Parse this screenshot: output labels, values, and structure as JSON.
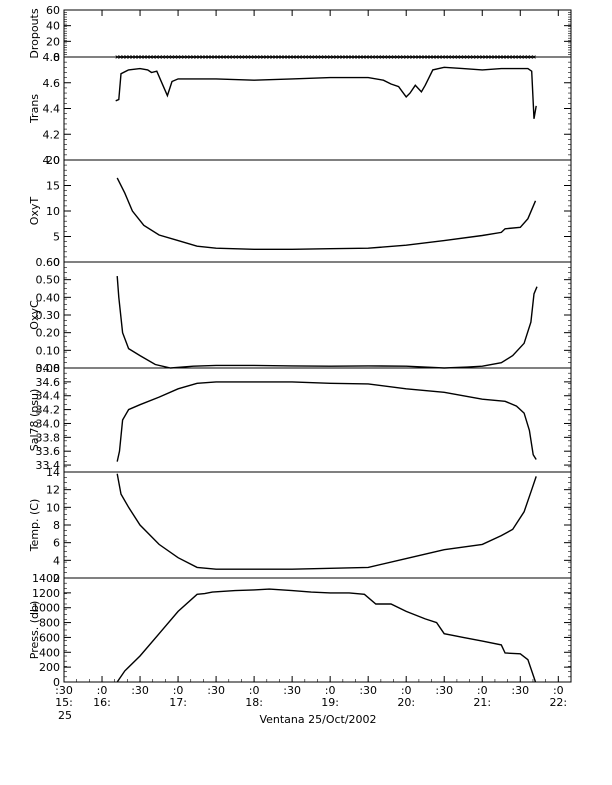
{
  "chart_data": {
    "type": "line",
    "caption": "Ventana 25/Oct/2002",
    "time_axis": {
      "start_hours": 15.5,
      "end_hours": 22.167,
      "ticks": [
        {
          "t": 15.5,
          "top": ":30",
          "bottom": "15:",
          "extra": "25"
        },
        {
          "t": 16.0,
          "top": ":0",
          "bottom": "16:",
          "extra": ""
        },
        {
          "t": 16.5,
          "top": ":30",
          "bottom": "",
          "extra": ""
        },
        {
          "t": 17.0,
          "top": ":0",
          "bottom": "17:",
          "extra": ""
        },
        {
          "t": 17.5,
          "top": ":30",
          "bottom": "",
          "extra": ""
        },
        {
          "t": 18.0,
          "top": ":0",
          "bottom": "18:",
          "extra": ""
        },
        {
          "t": 18.5,
          "top": ":30",
          "bottom": "",
          "extra": ""
        },
        {
          "t": 19.0,
          "top": ":0",
          "bottom": "19:",
          "extra": ""
        },
        {
          "t": 19.5,
          "top": ":30",
          "bottom": "",
          "extra": ""
        },
        {
          "t": 20.0,
          "top": ":0",
          "bottom": "20:",
          "extra": ""
        },
        {
          "t": 20.5,
          "top": ":30",
          "bottom": "",
          "extra": ""
        },
        {
          "t": 21.0,
          "top": ":0",
          "bottom": "21:",
          "extra": ""
        },
        {
          "t": 21.5,
          "top": ":30",
          "bottom": "",
          "extra": ""
        },
        {
          "t": 22.0,
          "top": ":0",
          "bottom": "22:",
          "extra": ""
        }
      ]
    },
    "panels": [
      {
        "id": "dropouts",
        "label": "Dropouts",
        "ylim": [
          0,
          60
        ],
        "tick_labels": [
          "0",
          "20",
          "40",
          "60"
        ],
        "series_color": "#000000",
        "points": [
          [
            16.2,
            0
          ],
          [
            21.7,
            0
          ]
        ]
      },
      {
        "id": "trans",
        "label": "Trans",
        "ylim": [
          4.0,
          4.8
        ],
        "tick_labels": [
          "4.0",
          "4.2",
          "4.4",
          "4.6",
          "4.8"
        ],
        "series_color": "#000000",
        "points": [
          [
            16.18,
            4.46
          ],
          [
            16.22,
            4.47
          ],
          [
            16.25,
            4.67
          ],
          [
            16.35,
            4.7
          ],
          [
            16.5,
            4.71
          ],
          [
            16.6,
            4.7
          ],
          [
            16.65,
            4.68
          ],
          [
            16.72,
            4.69
          ],
          [
            16.8,
            4.58
          ],
          [
            16.86,
            4.5
          ],
          [
            16.92,
            4.61
          ],
          [
            17.0,
            4.63
          ],
          [
            17.5,
            4.63
          ],
          [
            18.0,
            4.62
          ],
          [
            18.5,
            4.63
          ],
          [
            19.0,
            4.64
          ],
          [
            19.5,
            4.64
          ],
          [
            19.7,
            4.62
          ],
          [
            19.8,
            4.59
          ],
          [
            19.9,
            4.57
          ],
          [
            19.95,
            4.53
          ],
          [
            20.0,
            4.49
          ],
          [
            20.05,
            4.52
          ],
          [
            20.12,
            4.58
          ],
          [
            20.2,
            4.53
          ],
          [
            20.25,
            4.58
          ],
          [
            20.35,
            4.7
          ],
          [
            20.5,
            4.72
          ],
          [
            20.75,
            4.71
          ],
          [
            21.0,
            4.7
          ],
          [
            21.25,
            4.71
          ],
          [
            21.5,
            4.71
          ],
          [
            21.6,
            4.71
          ],
          [
            21.65,
            4.69
          ],
          [
            21.68,
            4.32
          ],
          [
            21.71,
            4.42
          ]
        ]
      },
      {
        "id": "oxyt",
        "label": "OxyT",
        "ylim": [
          0,
          20
        ],
        "tick_labels": [
          "0",
          "5",
          "10",
          "15",
          "20"
        ],
        "series_color": "#000000",
        "points": [
          [
            16.2,
            16.5
          ],
          [
            16.3,
            13.5
          ],
          [
            16.4,
            10.0
          ],
          [
            16.55,
            7.2
          ],
          [
            16.75,
            5.3
          ],
          [
            17.0,
            4.2
          ],
          [
            17.25,
            3.1
          ],
          [
            17.5,
            2.7
          ],
          [
            18.0,
            2.5
          ],
          [
            18.5,
            2.5
          ],
          [
            19.0,
            2.6
          ],
          [
            19.5,
            2.7
          ],
          [
            20.0,
            3.3
          ],
          [
            20.5,
            4.2
          ],
          [
            21.0,
            5.2
          ],
          [
            21.25,
            5.8
          ],
          [
            21.3,
            6.5
          ],
          [
            21.5,
            6.8
          ],
          [
            21.6,
            8.5
          ],
          [
            21.7,
            12.0
          ]
        ]
      },
      {
        "id": "oxyc",
        "label": "OxyC",
        "ylim": [
          0,
          0.6
        ],
        "tick_labels": [
          "0.00",
          "0.10",
          "0.20",
          "0.30",
          "0.40",
          "0.50",
          "0.60"
        ],
        "series_color": "#000000",
        "points": [
          [
            16.2,
            0.52
          ],
          [
            16.22,
            0.4
          ],
          [
            16.27,
            0.2
          ],
          [
            16.35,
            0.11
          ],
          [
            16.5,
            0.07
          ],
          [
            16.7,
            0.02
          ],
          [
            16.9,
            0.0
          ],
          [
            17.2,
            0.01
          ],
          [
            17.5,
            0.015
          ],
          [
            18.0,
            0.015
          ],
          [
            18.5,
            0.012
          ],
          [
            19.0,
            0.01
          ],
          [
            19.5,
            0.012
          ],
          [
            20.0,
            0.01
          ],
          [
            20.5,
            0.0
          ],
          [
            20.8,
            0.005
          ],
          [
            21.0,
            0.01
          ],
          [
            21.25,
            0.03
          ],
          [
            21.4,
            0.07
          ],
          [
            21.55,
            0.14
          ],
          [
            21.64,
            0.26
          ],
          [
            21.68,
            0.42
          ],
          [
            21.72,
            0.46
          ]
        ]
      },
      {
        "id": "sal",
        "label": "Sal78 (psu)",
        "ylim": [
          33.3,
          34.8
        ],
        "tick_labels": [
          "33.4",
          "33.6",
          "33.8",
          "34.0",
          "34.2",
          "34.4",
          "34.6",
          "34.8"
        ],
        "series_color": "#000000",
        "points": [
          [
            16.2,
            33.45
          ],
          [
            16.23,
            33.6
          ],
          [
            16.27,
            34.05
          ],
          [
            16.35,
            34.2
          ],
          [
            16.5,
            34.27
          ],
          [
            16.75,
            34.38
          ],
          [
            17.0,
            34.5
          ],
          [
            17.25,
            34.58
          ],
          [
            17.5,
            34.6
          ],
          [
            18.0,
            34.6
          ],
          [
            18.5,
            34.6
          ],
          [
            19.0,
            34.58
          ],
          [
            19.5,
            34.57
          ],
          [
            20.0,
            34.5
          ],
          [
            20.5,
            34.45
          ],
          [
            21.0,
            34.35
          ],
          [
            21.3,
            34.32
          ],
          [
            21.45,
            34.25
          ],
          [
            21.55,
            34.15
          ],
          [
            21.62,
            33.9
          ],
          [
            21.67,
            33.55
          ],
          [
            21.71,
            33.48
          ]
        ]
      },
      {
        "id": "temp",
        "label": "Temp. (C)",
        "ylim": [
          2,
          14
        ],
        "tick_labels": [
          "2",
          "4",
          "6",
          "8",
          "10",
          "12",
          "14"
        ],
        "series_color": "#000000",
        "points": [
          [
            16.2,
            13.8
          ],
          [
            16.25,
            11.5
          ],
          [
            16.35,
            10.0
          ],
          [
            16.5,
            8.0
          ],
          [
            16.75,
            5.8
          ],
          [
            17.0,
            4.3
          ],
          [
            17.25,
            3.2
          ],
          [
            17.5,
            3.0
          ],
          [
            18.0,
            3.0
          ],
          [
            18.5,
            3.0
          ],
          [
            19.0,
            3.1
          ],
          [
            19.5,
            3.2
          ],
          [
            20.0,
            4.2
          ],
          [
            20.5,
            5.2
          ],
          [
            21.0,
            5.8
          ],
          [
            21.25,
            6.8
          ],
          [
            21.4,
            7.5
          ],
          [
            21.55,
            9.5
          ],
          [
            21.65,
            12.0
          ],
          [
            21.71,
            13.5
          ]
        ]
      },
      {
        "id": "press",
        "label": "Press. (db)",
        "ylim": [
          0,
          1400
        ],
        "tick_labels": [
          "0",
          "200",
          "400",
          "600",
          "800",
          "1000",
          "1200",
          "1400"
        ],
        "series_color": "#000000",
        "points": [
          [
            16.2,
            0
          ],
          [
            16.3,
            150
          ],
          [
            16.5,
            350
          ],
          [
            16.75,
            650
          ],
          [
            17.0,
            950
          ],
          [
            17.25,
            1180
          ],
          [
            17.35,
            1190
          ],
          [
            17.45,
            1210
          ],
          [
            17.75,
            1230
          ],
          [
            18.0,
            1240
          ],
          [
            18.2,
            1250
          ],
          [
            18.5,
            1230
          ],
          [
            18.75,
            1210
          ],
          [
            19.0,
            1200
          ],
          [
            19.25,
            1200
          ],
          [
            19.45,
            1180
          ],
          [
            19.6,
            1050
          ],
          [
            19.8,
            1050
          ],
          [
            20.0,
            950
          ],
          [
            20.25,
            850
          ],
          [
            20.4,
            800
          ],
          [
            20.5,
            650
          ],
          [
            20.75,
            600
          ],
          [
            21.0,
            550
          ],
          [
            21.25,
            500
          ],
          [
            21.3,
            390
          ],
          [
            21.5,
            380
          ],
          [
            21.6,
            300
          ],
          [
            21.7,
            0
          ]
        ]
      }
    ]
  }
}
